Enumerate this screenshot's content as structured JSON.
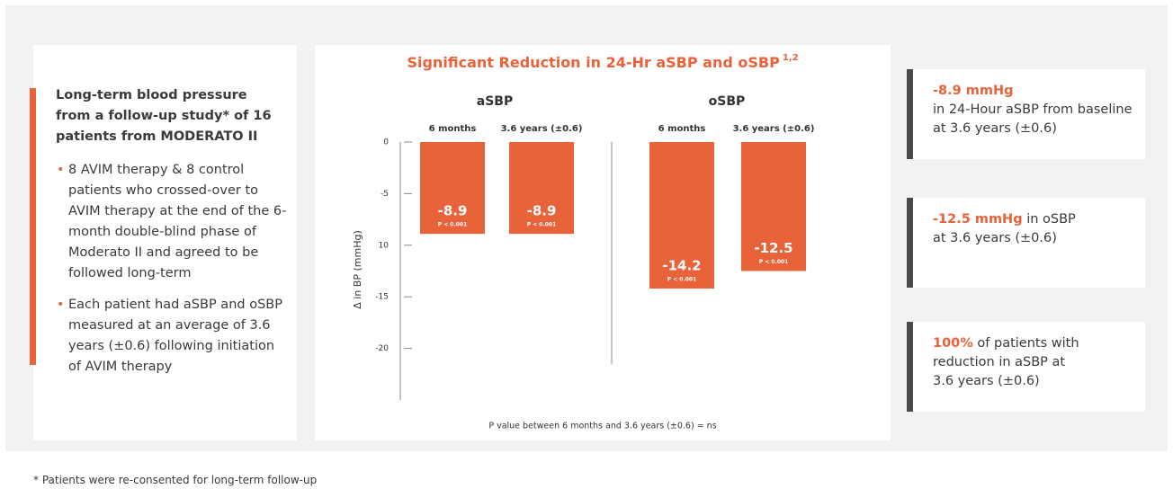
{
  "left_panel": {
    "heading": "Long-term blood pressure from a follow-up study* of 16 patients from MODERATO II",
    "bullets": [
      "8 AVIM therapy & 8 control patients who crossed-over to AVIM therapy at the end of the 6-month double-blind phase of Moderato II and agreed to be followed long-term",
      "Each patient had aSBP and oSBP measured at an average of 3.6 years (±0.6)  following initiation of AVIM therapy"
    ]
  },
  "chart_data": {
    "type": "bar",
    "title": "Significant Reduction in 24-Hr aSBP and oSBP",
    "title_superscript": "1,2",
    "groups": [
      "aSBP",
      "oSBP"
    ],
    "categories": [
      "6 months",
      "3.6 years (±0.6)",
      "6 months",
      "3.6 years (±0.6)"
    ],
    "values": [
      -8.9,
      -8.9,
      -14.2,
      -12.5
    ],
    "p_labels": [
      "P < 0.001",
      "P < 0.001",
      "P < 0.001",
      "P < 0.001"
    ],
    "color": "#e8623a",
    "y_label": "Δ in BP (mmHg)",
    "ylim": [
      -25,
      0
    ],
    "yticks": [
      0,
      -5,
      {
        "value": -10,
        "label": "10"
      },
      -15,
      -20
    ],
    "note": "P value between 6 months and 3.6 years (±0.6)  = ns"
  },
  "stats": [
    {
      "highlight": "-8.9 mmHg",
      "text": "in 24-Hour aSBP from baseline at 3.6 years (±0.6)"
    },
    {
      "highlight": "-12.5 mmHg",
      "text": "in oSBP at 3.6 years (±0.6)"
    },
    {
      "highlight": "100%",
      "text": "of patients with reduction in aSBP at 3.6 years (±0.6)"
    }
  ],
  "footnote": "* Patients were re-consented for long-term follow-up"
}
